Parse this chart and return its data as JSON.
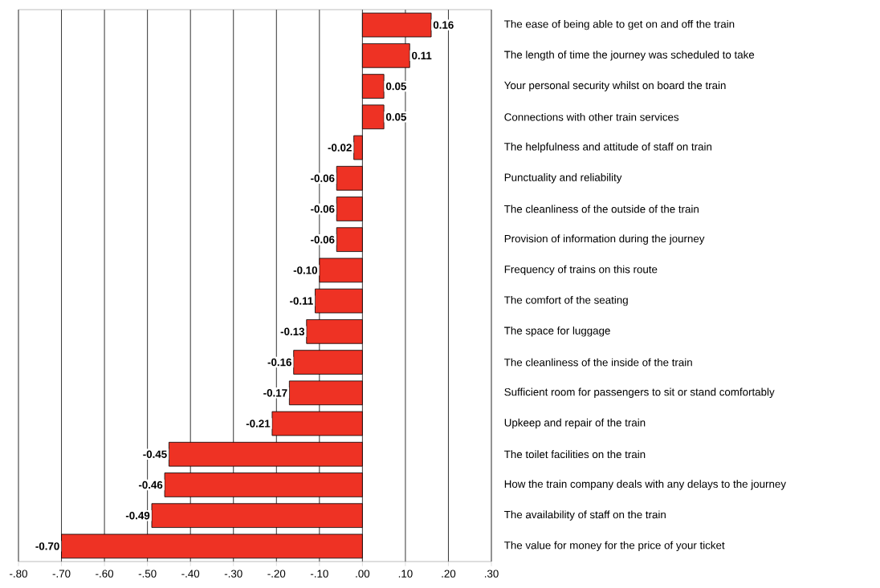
{
  "chart_data": {
    "type": "bar",
    "orientation": "horizontal",
    "categories": [
      "The ease of being able to get on and off the train",
      "The length of time the journey was scheduled to take",
      "Your personal security whilst on board the train",
      "Connections with other train services",
      "The helpfulness and attitude of staff on train",
      "Punctuality and reliability",
      "The cleanliness of the outside of the train",
      "Provision of information during the journey",
      "Frequency of trains on this route",
      "The comfort of the seating",
      "The space for luggage",
      "The cleanliness of the inside of the train",
      "Sufficient room for passengers to sit or stand comfortably",
      "Upkeep and repair of the train",
      "The toilet facilities on the train",
      "How the train company deals with any delays to the journey",
      "The availability of staff on the train",
      "The value for money for the price of your ticket"
    ],
    "values": [
      0.16,
      0.11,
      0.05,
      0.05,
      -0.02,
      -0.06,
      -0.06,
      -0.06,
      -0.1,
      -0.11,
      -0.13,
      -0.16,
      -0.17,
      -0.21,
      -0.45,
      -0.46,
      -0.49,
      -0.7
    ],
    "value_labels": [
      "0.16",
      "0.11",
      "0.05",
      "0.05",
      "-0.02",
      "-0.06",
      "-0.06",
      "-0.06",
      "-0.10",
      "-0.11",
      "-0.13",
      "-0.16",
      "-0.17",
      "-0.21",
      "-0.45",
      "-0.46",
      "-0.49",
      "-0.70"
    ],
    "color": "#ee3224",
    "xlim": [
      -0.8,
      0.3
    ],
    "xticks": [
      {
        "value": -0.8,
        "label": "-.80"
      },
      {
        "value": -0.7,
        "label": "-.70"
      },
      {
        "value": -0.6,
        "label": "-.60"
      },
      {
        "value": -0.5,
        "label": "-.50"
      },
      {
        "value": -0.4,
        "label": "-.40"
      },
      {
        "value": -0.3,
        "label": "-.30"
      },
      {
        "value": -0.2,
        "label": "-.20"
      },
      {
        "value": -0.1,
        "label": "-.10"
      },
      {
        "value": 0,
        "label": ".00"
      },
      {
        "value": 0.1,
        "label": ".10"
      },
      {
        "value": 0.2,
        "label": ".20"
      },
      {
        "value": 0.3,
        "label": ".30"
      }
    ],
    "grid": "x"
  }
}
